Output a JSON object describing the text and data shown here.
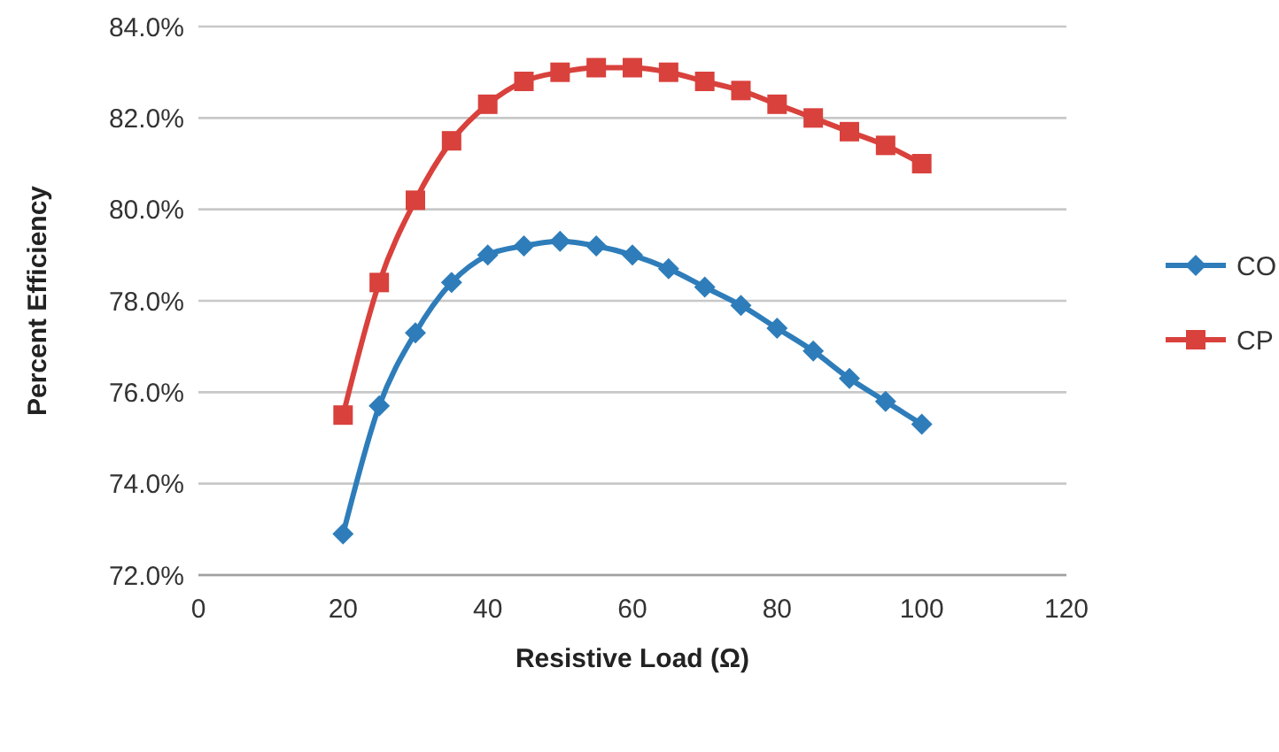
{
  "chart_data": {
    "type": "line",
    "xlabel": "Resistive Load (Ω)",
    "ylabel": "Percent Efficiency",
    "x": [
      20,
      25,
      30,
      35,
      40,
      45,
      50,
      55,
      60,
      65,
      70,
      75,
      80,
      85,
      90,
      95,
      100
    ],
    "series": [
      {
        "name": "CO",
        "color": "#2e7dba",
        "marker": "diamond",
        "values": [
          72.9,
          75.7,
          77.3,
          78.4,
          79.0,
          79.2,
          79.3,
          79.2,
          79.0,
          78.7,
          78.3,
          77.9,
          77.4,
          76.9,
          76.3,
          75.8,
          75.3
        ]
      },
      {
        "name": "CP",
        "color": "#d9413c",
        "marker": "square",
        "values": [
          75.5,
          78.4,
          80.2,
          81.5,
          82.3,
          82.8,
          83.0,
          83.1,
          83.1,
          83.0,
          82.8,
          82.6,
          82.3,
          82.0,
          81.7,
          81.4,
          81.0
        ]
      }
    ],
    "xlim": [
      0,
      120
    ],
    "xticks": [
      0,
      20,
      40,
      60,
      80,
      100,
      120
    ],
    "ylim": [
      72,
      84
    ],
    "yticks": [
      {
        "value": 72,
        "label": "72.0%"
      },
      {
        "value": 74,
        "label": "74.0%"
      },
      {
        "value": 76,
        "label": "76.0%"
      },
      {
        "value": 78,
        "label": "78.0%"
      },
      {
        "value": 80,
        "label": "80.0%"
      },
      {
        "value": 82,
        "label": "82.0%"
      },
      {
        "value": 84,
        "label": "84.0%"
      }
    ],
    "grid": "y",
    "legend": "right",
    "line_style": "solid"
  }
}
